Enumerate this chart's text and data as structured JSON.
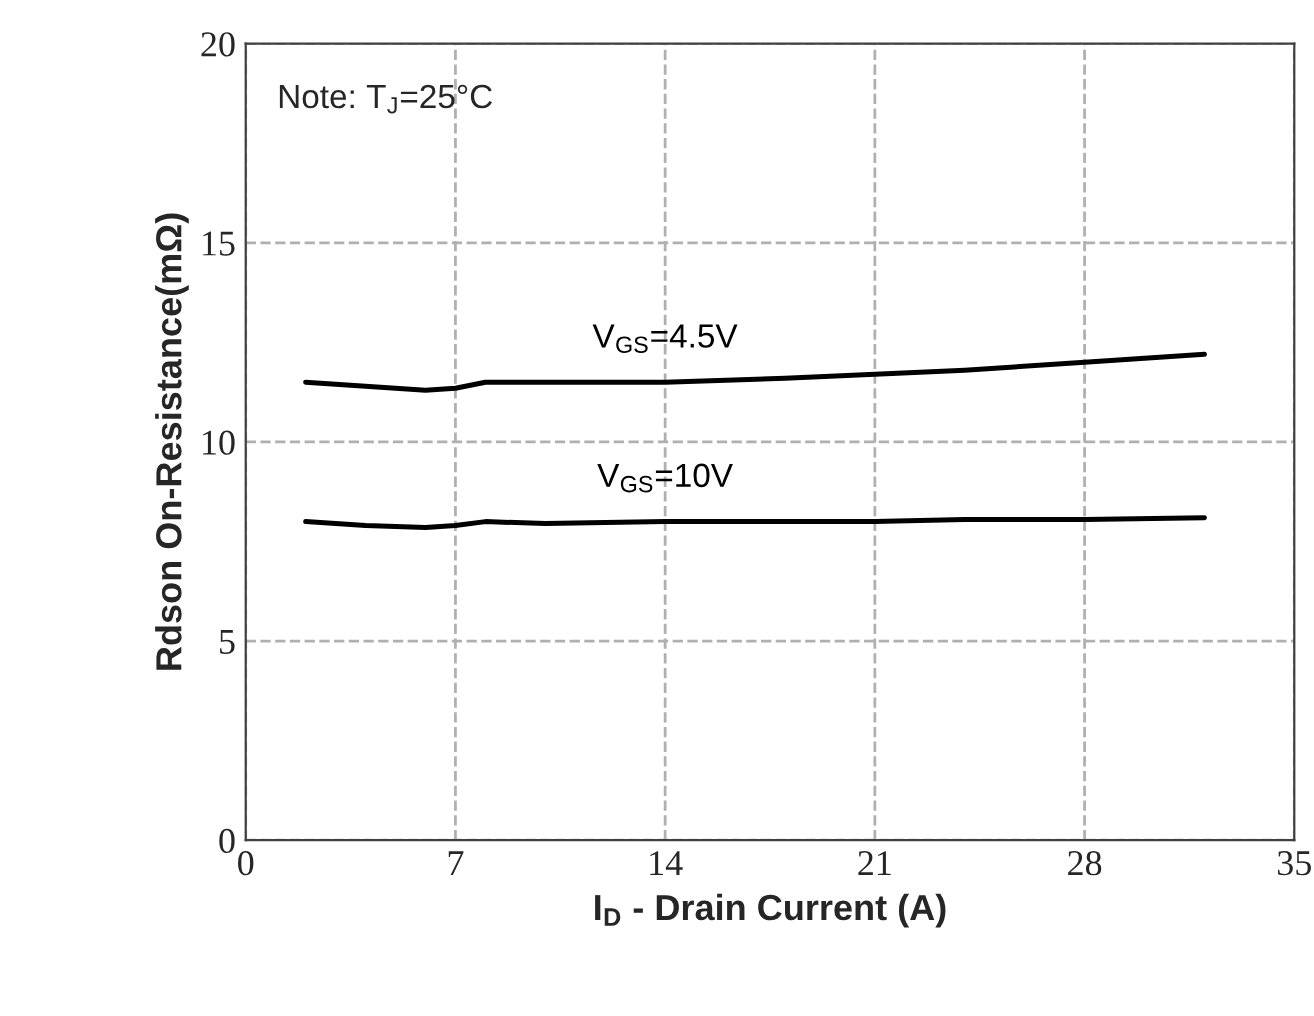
{
  "chart_data": {
    "type": "line",
    "xlabel": "I$_{D}$ - Drain Current (A)",
    "ylabel": "Rdson On-Resistance(mΩ)",
    "annotations": [
      "Note: T$_{J}$=25°C"
    ],
    "xlim": [
      0,
      35
    ],
    "xticks": [
      0,
      7,
      14,
      21,
      28,
      35
    ],
    "ylim": [
      0,
      20
    ],
    "yticks": [
      0,
      5,
      10,
      15,
      20
    ],
    "grid": true,
    "line_style": "solid",
    "series": [
      {
        "name": "V$_{GS}$=4.5V",
        "color": "#000000",
        "x": [
          2,
          4,
          6,
          7,
          8,
          10,
          14,
          18,
          21,
          24,
          28,
          30,
          32
        ],
        "values": [
          11.5,
          11.4,
          11.3,
          11.35,
          11.5,
          11.5,
          11.5,
          11.6,
          11.7,
          11.8,
          12.0,
          12.1,
          12.2
        ]
      },
      {
        "name": "V$_{GS}$=10V",
        "color": "#000000",
        "x": [
          2,
          4,
          6,
          7,
          8,
          10,
          14,
          18,
          21,
          24,
          28,
          32
        ],
        "values": [
          8.0,
          7.9,
          7.85,
          7.9,
          8.0,
          7.95,
          8.0,
          8.0,
          8.0,
          8.05,
          8.05,
          8.1
        ]
      }
    ]
  }
}
